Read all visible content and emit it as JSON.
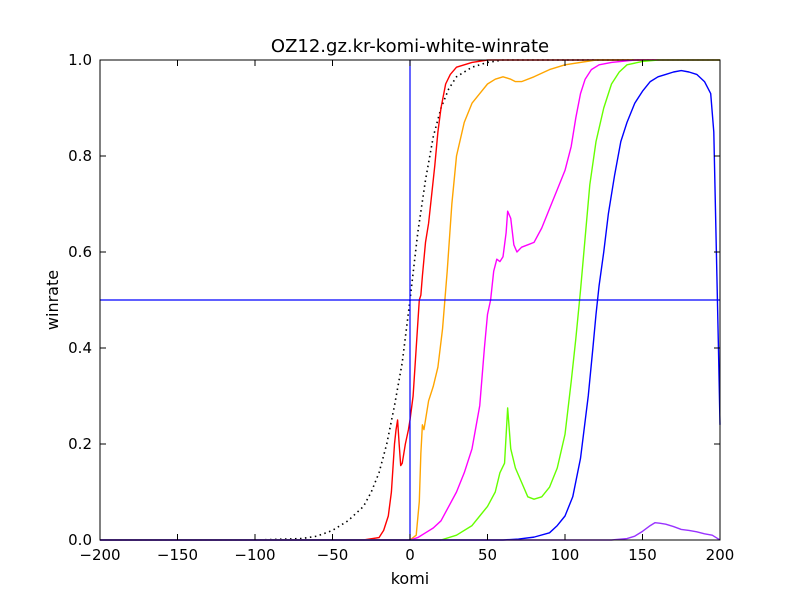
{
  "chart_data": {
    "type": "line",
    "title": "OZ12.gz.kr-komi-white-winrate",
    "xlabel": "komi",
    "ylabel": "winrate",
    "xlim": [
      -200,
      200
    ],
    "ylim": [
      0,
      1
    ],
    "x_ticks": [
      "−200",
      "−150",
      "−100",
      "−50",
      "0",
      "50",
      "100",
      "150",
      "200"
    ],
    "y_ticks": [
      "0.0",
      "0.2",
      "0.4",
      "0.6",
      "0.8",
      "1.0"
    ],
    "grid": false,
    "legend": "none",
    "reference_lines": [
      {
        "orientation": "vertical",
        "x": 0,
        "color": "#0000ff"
      },
      {
        "orientation": "horizontal",
        "y": 0.5,
        "color": "#0000ff"
      }
    ],
    "series": [
      {
        "color": "#000000",
        "style": "dotted",
        "points": [
          [
            -200,
            0
          ],
          [
            -100,
            0
          ],
          [
            -70,
            0.003
          ],
          [
            -60,
            0.008
          ],
          [
            -50,
            0.02
          ],
          [
            -40,
            0.04
          ],
          [
            -30,
            0.07
          ],
          [
            -25,
            0.1
          ],
          [
            -20,
            0.14
          ],
          [
            -15,
            0.2
          ],
          [
            -10,
            0.28
          ],
          [
            -5,
            0.37
          ],
          [
            0,
            0.5
          ],
          [
            5,
            0.64
          ],
          [
            10,
            0.75
          ],
          [
            15,
            0.84
          ],
          [
            20,
            0.9
          ],
          [
            25,
            0.94
          ],
          [
            30,
            0.965
          ],
          [
            40,
            0.985
          ],
          [
            50,
            0.995
          ],
          [
            60,
            1.0
          ],
          [
            200,
            1.0
          ]
        ]
      },
      {
        "color": "#ff0000",
        "style": "solid",
        "points": [
          [
            -200,
            0
          ],
          [
            -30,
            0
          ],
          [
            -20,
            0.005
          ],
          [
            -17,
            0.02
          ],
          [
            -14,
            0.05
          ],
          [
            -12,
            0.1
          ],
          [
            -10,
            0.2
          ],
          [
            -9,
            0.23
          ],
          [
            -8,
            0.25
          ],
          [
            -7,
            0.2
          ],
          [
            -6,
            0.155
          ],
          [
            -5,
            0.16
          ],
          [
            -3,
            0.2
          ],
          [
            -1,
            0.23
          ],
          [
            0,
            0.25
          ],
          [
            2,
            0.3
          ],
          [
            4,
            0.4
          ],
          [
            6,
            0.5
          ],
          [
            7,
            0.51
          ],
          [
            8,
            0.55
          ],
          [
            10,
            0.62
          ],
          [
            12,
            0.66
          ],
          [
            14,
            0.72
          ],
          [
            16,
            0.78
          ],
          [
            18,
            0.85
          ],
          [
            20,
            0.9
          ],
          [
            23,
            0.95
          ],
          [
            26,
            0.97
          ],
          [
            30,
            0.985
          ],
          [
            40,
            0.995
          ],
          [
            50,
            1.0
          ],
          [
            200,
            1.0
          ]
        ]
      },
      {
        "color": "#ffa500",
        "style": "solid",
        "points": [
          [
            -200,
            0
          ],
          [
            0,
            0
          ],
          [
            4,
            0.01
          ],
          [
            6,
            0.08
          ],
          [
            7,
            0.18
          ],
          [
            8,
            0.24
          ],
          [
            9,
            0.23
          ],
          [
            10,
            0.25
          ],
          [
            12,
            0.29
          ],
          [
            15,
            0.32
          ],
          [
            18,
            0.36
          ],
          [
            21,
            0.44
          ],
          [
            24,
            0.56
          ],
          [
            27,
            0.7
          ],
          [
            30,
            0.8
          ],
          [
            35,
            0.87
          ],
          [
            40,
            0.91
          ],
          [
            45,
            0.93
          ],
          [
            50,
            0.95
          ],
          [
            55,
            0.96
          ],
          [
            60,
            0.965
          ],
          [
            65,
            0.96
          ],
          [
            68,
            0.955
          ],
          [
            72,
            0.955
          ],
          [
            80,
            0.965
          ],
          [
            90,
            0.98
          ],
          [
            100,
            0.99
          ],
          [
            120,
            1.0
          ],
          [
            200,
            1.0
          ]
        ]
      },
      {
        "color": "#ff00ff",
        "style": "solid",
        "points": [
          [
            -200,
            0
          ],
          [
            0,
            0
          ],
          [
            5,
            0.005
          ],
          [
            10,
            0.015
          ],
          [
            15,
            0.025
          ],
          [
            20,
            0.04
          ],
          [
            25,
            0.07
          ],
          [
            30,
            0.1
          ],
          [
            35,
            0.14
          ],
          [
            40,
            0.19
          ],
          [
            45,
            0.28
          ],
          [
            48,
            0.4
          ],
          [
            50,
            0.47
          ],
          [
            52,
            0.5
          ],
          [
            54,
            0.56
          ],
          [
            56,
            0.585
          ],
          [
            58,
            0.58
          ],
          [
            60,
            0.59
          ],
          [
            62,
            0.64
          ],
          [
            63,
            0.685
          ],
          [
            65,
            0.67
          ],
          [
            67,
            0.615
          ],
          [
            69,
            0.6
          ],
          [
            72,
            0.61
          ],
          [
            76,
            0.615
          ],
          [
            80,
            0.62
          ],
          [
            85,
            0.65
          ],
          [
            90,
            0.69
          ],
          [
            95,
            0.73
          ],
          [
            100,
            0.77
          ],
          [
            104,
            0.82
          ],
          [
            107,
            0.88
          ],
          [
            110,
            0.93
          ],
          [
            113,
            0.96
          ],
          [
            117,
            0.98
          ],
          [
            122,
            0.99
          ],
          [
            130,
            0.995
          ],
          [
            145,
            1.0
          ],
          [
            200,
            1.0
          ]
        ]
      },
      {
        "color": "#66ff00",
        "style": "solid",
        "points": [
          [
            -200,
            0
          ],
          [
            20,
            0
          ],
          [
            30,
            0.01
          ],
          [
            40,
            0.03
          ],
          [
            45,
            0.05
          ],
          [
            50,
            0.07
          ],
          [
            55,
            0.1
          ],
          [
            58,
            0.14
          ],
          [
            61,
            0.16
          ],
          [
            63,
            0.275
          ],
          [
            65,
            0.19
          ],
          [
            68,
            0.15
          ],
          [
            72,
            0.12
          ],
          [
            76,
            0.09
          ],
          [
            80,
            0.085
          ],
          [
            85,
            0.09
          ],
          [
            90,
            0.11
          ],
          [
            95,
            0.15
          ],
          [
            100,
            0.22
          ],
          [
            104,
            0.33
          ],
          [
            107,
            0.42
          ],
          [
            110,
            0.52
          ],
          [
            113,
            0.63
          ],
          [
            116,
            0.74
          ],
          [
            120,
            0.83
          ],
          [
            125,
            0.9
          ],
          [
            130,
            0.95
          ],
          [
            135,
            0.975
          ],
          [
            140,
            0.99
          ],
          [
            150,
            0.997
          ],
          [
            160,
            1.0
          ],
          [
            200,
            1.0
          ]
        ]
      },
      {
        "color": "#0000ff",
        "style": "solid",
        "points": [
          [
            -200,
            0
          ],
          [
            60,
            0
          ],
          [
            70,
            0.002
          ],
          [
            80,
            0.006
          ],
          [
            90,
            0.015
          ],
          [
            95,
            0.03
          ],
          [
            100,
            0.05
          ],
          [
            105,
            0.09
          ],
          [
            110,
            0.17
          ],
          [
            115,
            0.3
          ],
          [
            118,
            0.4
          ],
          [
            120,
            0.47
          ],
          [
            122,
            0.53
          ],
          [
            125,
            0.6
          ],
          [
            128,
            0.68
          ],
          [
            132,
            0.76
          ],
          [
            136,
            0.83
          ],
          [
            140,
            0.87
          ],
          [
            145,
            0.91
          ],
          [
            150,
            0.935
          ],
          [
            155,
            0.955
          ],
          [
            160,
            0.965
          ],
          [
            165,
            0.97
          ],
          [
            170,
            0.975
          ],
          [
            175,
            0.978
          ],
          [
            180,
            0.975
          ],
          [
            185,
            0.97
          ],
          [
            190,
            0.955
          ],
          [
            194,
            0.93
          ],
          [
            196,
            0.85
          ],
          [
            198,
            0.55
          ],
          [
            199,
            0.4
          ],
          [
            200,
            0.24
          ]
        ]
      },
      {
        "color": "#9933ff",
        "style": "solid",
        "points": [
          [
            -200,
            0
          ],
          [
            130,
            0
          ],
          [
            140,
            0.003
          ],
          [
            145,
            0.008
          ],
          [
            150,
            0.018
          ],
          [
            155,
            0.03
          ],
          [
            158,
            0.036
          ],
          [
            161,
            0.035
          ],
          [
            165,
            0.033
          ],
          [
            170,
            0.028
          ],
          [
            175,
            0.022
          ],
          [
            180,
            0.02
          ],
          [
            185,
            0.017
          ],
          [
            190,
            0.013
          ],
          [
            195,
            0.01
          ],
          [
            198,
            0.004
          ],
          [
            200,
            0.0
          ]
        ]
      }
    ]
  }
}
